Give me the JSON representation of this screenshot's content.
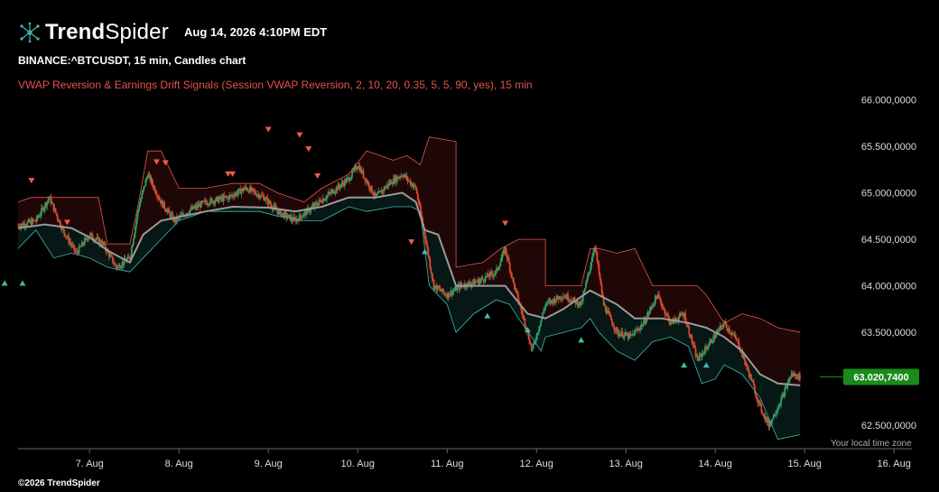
{
  "header": {
    "brand_bold": "Trend",
    "brand_light": "Spider",
    "datetime": "Aug 14, 2026 4:10PM EDT",
    "symbol_line": "BINANCE:^BTCUSDT, 15 min, Candles chart",
    "indicator_line": "VWAP Reversion & Earnings Drift Signals (Session VWAP Reversion, 2, 10, 20, 0.35, 5, 5, 90, yes), 15 min",
    "timezone_note": "Your local time zone",
    "copyright": "©2026 TrendSpider"
  },
  "colors": {
    "up": "#26a269",
    "down": "#e0452e",
    "vwap": "#9a9a9a",
    "upper_band": "#e0554b",
    "lower_band": "#3fb8af",
    "sell_signal": "#ef5a50",
    "buy_signal": "#3fb8af",
    "last_price_bg": "#1a8a1a"
  },
  "chart_data": {
    "type": "candlestick",
    "title": "BINANCE:^BTCUSDT, 15 min, Candles chart",
    "x_ticks": [
      "7. Aug",
      "8. Aug",
      "9. Aug",
      "10. Aug",
      "11. Aug",
      "12. Aug",
      "13. Aug",
      "14. Aug",
      "15. Aug",
      "16. Aug"
    ],
    "y_ticks": [
      "66.000,0000",
      "65.500,0000",
      "65.000,0000",
      "64.500,0000",
      "64.000,0000",
      "63.500,0000",
      "63.000,0000",
      "62.500,0000"
    ],
    "y_tick_values": [
      66000,
      65500,
      65000,
      64500,
      64000,
      63500,
      63000,
      62500
    ],
    "ylim": [
      62250,
      66150
    ],
    "x_range_days": [
      6.2,
      16.2
    ],
    "last_price": 63020.74,
    "last_price_label": "63.020,7400",
    "price_path": [
      [
        6.2,
        64650
      ],
      [
        6.4,
        64700
      ],
      [
        6.55,
        64950
      ],
      [
        6.7,
        64600
      ],
      [
        6.85,
        64350
      ],
      [
        7.0,
        64550
      ],
      [
        7.15,
        64450
      ],
      [
        7.3,
        64200
      ],
      [
        7.45,
        64300
      ],
      [
        7.55,
        64850
      ],
      [
        7.65,
        65200
      ],
      [
        7.8,
        64900
      ],
      [
        7.95,
        64700
      ],
      [
        8.1,
        64800
      ],
      [
        8.3,
        64900
      ],
      [
        8.55,
        64950
      ],
      [
        8.75,
        65050
      ],
      [
        8.95,
        64950
      ],
      [
        9.1,
        64800
      ],
      [
        9.3,
        64700
      ],
      [
        9.5,
        64850
      ],
      [
        9.7,
        65000
      ],
      [
        9.9,
        65150
      ],
      [
        10.0,
        65300
      ],
      [
        10.2,
        64950
      ],
      [
        10.35,
        65100
      ],
      [
        10.5,
        65200
      ],
      [
        10.65,
        65050
      ],
      [
        10.75,
        64550
      ],
      [
        10.85,
        64000
      ],
      [
        11.0,
        63900
      ],
      [
        11.15,
        64000
      ],
      [
        11.35,
        64050
      ],
      [
        11.55,
        64150
      ],
      [
        11.65,
        64400
      ],
      [
        11.75,
        64000
      ],
      [
        11.9,
        63500
      ],
      [
        11.95,
        63300
      ],
      [
        12.1,
        63800
      ],
      [
        12.3,
        63900
      ],
      [
        12.5,
        63800
      ],
      [
        12.6,
        64200
      ],
      [
        12.65,
        64450
      ],
      [
        12.75,
        63800
      ],
      [
        12.9,
        63500
      ],
      [
        13.05,
        63450
      ],
      [
        13.2,
        63600
      ],
      [
        13.35,
        63900
      ],
      [
        13.5,
        63600
      ],
      [
        13.65,
        63700
      ],
      [
        13.8,
        63200
      ],
      [
        13.95,
        63400
      ],
      [
        14.1,
        63600
      ],
      [
        14.25,
        63400
      ],
      [
        14.4,
        63000
      ],
      [
        14.5,
        62700
      ],
      [
        14.6,
        62500
      ],
      [
        14.75,
        62800
      ],
      [
        14.85,
        63050
      ],
      [
        14.95,
        63020
      ]
    ],
    "vwap_path": [
      [
        6.2,
        64620
      ],
      [
        6.5,
        64660
      ],
      [
        6.8,
        64620
      ],
      [
        7.0,
        64520
      ],
      [
        7.2,
        64380
      ],
      [
        7.45,
        64250
      ],
      [
        7.6,
        64550
      ],
      [
        7.8,
        64700
      ],
      [
        8.0,
        64740
      ],
      [
        8.3,
        64800
      ],
      [
        8.6,
        64850
      ],
      [
        9.0,
        64840
      ],
      [
        9.3,
        64800
      ],
      [
        9.6,
        64850
      ],
      [
        9.9,
        64950
      ],
      [
        10.2,
        64950
      ],
      [
        10.5,
        65000
      ],
      [
        10.65,
        64900
      ],
      [
        10.75,
        64600
      ],
      [
        10.9,
        64550
      ],
      [
        11.1,
        64000
      ],
      [
        11.4,
        64000
      ],
      [
        11.65,
        64000
      ],
      [
        11.9,
        63700
      ],
      [
        12.1,
        63650
      ],
      [
        12.3,
        63750
      ],
      [
        12.6,
        63950
      ],
      [
        12.9,
        63800
      ],
      [
        13.1,
        63650
      ],
      [
        13.4,
        63650
      ],
      [
        13.7,
        63600
      ],
      [
        13.9,
        63550
      ],
      [
        14.1,
        63450
      ],
      [
        14.3,
        63300
      ],
      [
        14.5,
        63050
      ],
      [
        14.7,
        62950
      ],
      [
        14.95,
        62930
      ]
    ],
    "upper_band_path": [
      [
        6.2,
        64900
      ],
      [
        6.35,
        64950
      ],
      [
        6.6,
        64950
      ],
      [
        6.85,
        64950
      ],
      [
        7.1,
        64950
      ],
      [
        7.2,
        64450
      ],
      [
        7.45,
        64450
      ],
      [
        7.55,
        64900
      ],
      [
        7.65,
        65450
      ],
      [
        7.8,
        65450
      ],
      [
        8.0,
        65050
      ],
      [
        8.3,
        65050
      ],
      [
        8.6,
        65100
      ],
      [
        8.9,
        65100
      ],
      [
        9.1,
        65000
      ],
      [
        9.4,
        64900
      ],
      [
        9.6,
        65050
      ],
      [
        9.9,
        65200
      ],
      [
        10.1,
        65450
      ],
      [
        10.4,
        65350
      ],
      [
        10.55,
        65400
      ],
      [
        10.7,
        65300
      ],
      [
        10.8,
        65600
      ],
      [
        11.1,
        65550
      ],
      [
        11.1,
        64200
      ],
      [
        11.4,
        64250
      ],
      [
        11.6,
        64400
      ],
      [
        11.8,
        64500
      ],
      [
        12.1,
        64500
      ],
      [
        12.1,
        64000
      ],
      [
        12.3,
        64000
      ],
      [
        12.5,
        64000
      ],
      [
        12.6,
        64400
      ],
      [
        12.7,
        64400
      ],
      [
        12.9,
        64350
      ],
      [
        13.1,
        64400
      ],
      [
        13.3,
        64000
      ],
      [
        13.5,
        64000
      ],
      [
        13.7,
        64000
      ],
      [
        13.8,
        64000
      ],
      [
        13.9,
        63900
      ],
      [
        14.1,
        63600
      ],
      [
        14.3,
        63700
      ],
      [
        14.5,
        63650
      ],
      [
        14.7,
        63550
      ],
      [
        14.95,
        63500
      ]
    ],
    "lower_band_path": [
      [
        6.2,
        64400
      ],
      [
        6.4,
        64600
      ],
      [
        6.6,
        64300
      ],
      [
        6.8,
        64350
      ],
      [
        7.0,
        64300
      ],
      [
        7.2,
        64200
      ],
      [
        7.45,
        64150
      ],
      [
        7.6,
        64300
      ],
      [
        7.8,
        64500
      ],
      [
        8.0,
        64700
      ],
      [
        8.3,
        64800
      ],
      [
        8.6,
        64800
      ],
      [
        8.9,
        64800
      ],
      [
        9.1,
        64750
      ],
      [
        9.4,
        64700
      ],
      [
        9.6,
        64700
      ],
      [
        9.9,
        64850
      ],
      [
        10.1,
        64800
      ],
      [
        10.4,
        64850
      ],
      [
        10.6,
        64850
      ],
      [
        10.7,
        64800
      ],
      [
        10.8,
        64000
      ],
      [
        11.0,
        63800
      ],
      [
        11.1,
        63500
      ],
      [
        11.3,
        63700
      ],
      [
        11.55,
        63850
      ],
      [
        11.7,
        63800
      ],
      [
        11.8,
        63650
      ],
      [
        12.05,
        63300
      ],
      [
        12.1,
        63450
      ],
      [
        12.3,
        63500
      ],
      [
        12.5,
        63550
      ],
      [
        12.6,
        63650
      ],
      [
        12.7,
        63500
      ],
      [
        12.9,
        63300
      ],
      [
        13.1,
        63200
      ],
      [
        13.3,
        63400
      ],
      [
        13.5,
        63450
      ],
      [
        13.7,
        63350
      ],
      [
        13.85,
        62950
      ],
      [
        14.0,
        63000
      ],
      [
        14.1,
        63150
      ],
      [
        14.3,
        63050
      ],
      [
        14.5,
        62800
      ],
      [
        14.7,
        62350
      ],
      [
        14.95,
        62400
      ]
    ],
    "sell_signals": [
      [
        6.35,
        65130
      ],
      [
        6.75,
        64680
      ],
      [
        7.75,
        65330
      ],
      [
        7.85,
        65320
      ],
      [
        8.55,
        65200
      ],
      [
        8.6,
        65200
      ],
      [
        9.0,
        65680
      ],
      [
        9.35,
        65620
      ],
      [
        9.45,
        65470
      ],
      [
        9.55,
        65180
      ],
      [
        10.6,
        64470
      ],
      [
        11.65,
        64670
      ]
    ],
    "buy_signals": [
      [
        6.05,
        64030
      ],
      [
        6.25,
        64030
      ],
      [
        10.75,
        64370
      ],
      [
        11.45,
        63680
      ],
      [
        11.9,
        63530
      ],
      [
        12.5,
        63420
      ],
      [
        13.65,
        63150
      ],
      [
        13.9,
        63150
      ]
    ]
  }
}
